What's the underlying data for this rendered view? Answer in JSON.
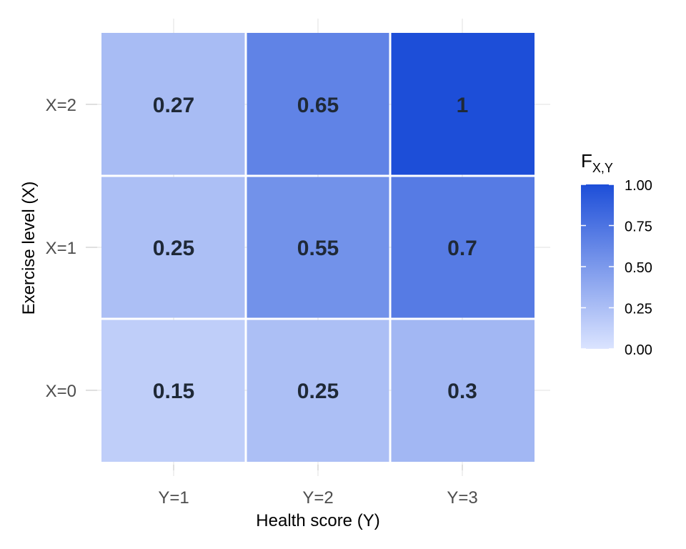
{
  "chart_data": {
    "type": "heatmap",
    "title": "",
    "xlabel": "Health score (Y)",
    "ylabel": "Exercise level (X)",
    "x_categories": [
      "Y=1",
      "Y=2",
      "Y=3"
    ],
    "y_categories": [
      "X=0",
      "X=1",
      "X=2"
    ],
    "cells": [
      {
        "x": "Y=1",
        "y": "X=0",
        "value": 0.15,
        "label": "0.15"
      },
      {
        "x": "Y=2",
        "y": "X=0",
        "value": 0.25,
        "label": "0.25"
      },
      {
        "x": "Y=3",
        "y": "X=0",
        "value": 0.3,
        "label": "0.3"
      },
      {
        "x": "Y=1",
        "y": "X=1",
        "value": 0.25,
        "label": "0.25"
      },
      {
        "x": "Y=2",
        "y": "X=1",
        "value": 0.55,
        "label": "0.55"
      },
      {
        "x": "Y=3",
        "y": "X=1",
        "value": 0.7,
        "label": "0.7"
      },
      {
        "x": "Y=1",
        "y": "X=2",
        "value": 0.27,
        "label": "0.27"
      },
      {
        "x": "Y=2",
        "y": "X=2",
        "value": 0.65,
        "label": "0.65"
      },
      {
        "x": "Y=3",
        "y": "X=2",
        "value": 1,
        "label": "1"
      }
    ],
    "legend": {
      "title_main": "F",
      "title_sub": "X,Y",
      "range": [
        0,
        1
      ],
      "ticks": [
        {
          "value": 1.0,
          "label": "1.00"
        },
        {
          "value": 0.75,
          "label": "0.75"
        },
        {
          "value": 0.5,
          "label": "0.50"
        },
        {
          "value": 0.25,
          "label": "0.25"
        },
        {
          "value": 0.0,
          "label": "0.00"
        }
      ],
      "color_low": "#dbe4ff",
      "color_high": "#1d4ed8",
      "placement": "right"
    },
    "grid": true
  }
}
